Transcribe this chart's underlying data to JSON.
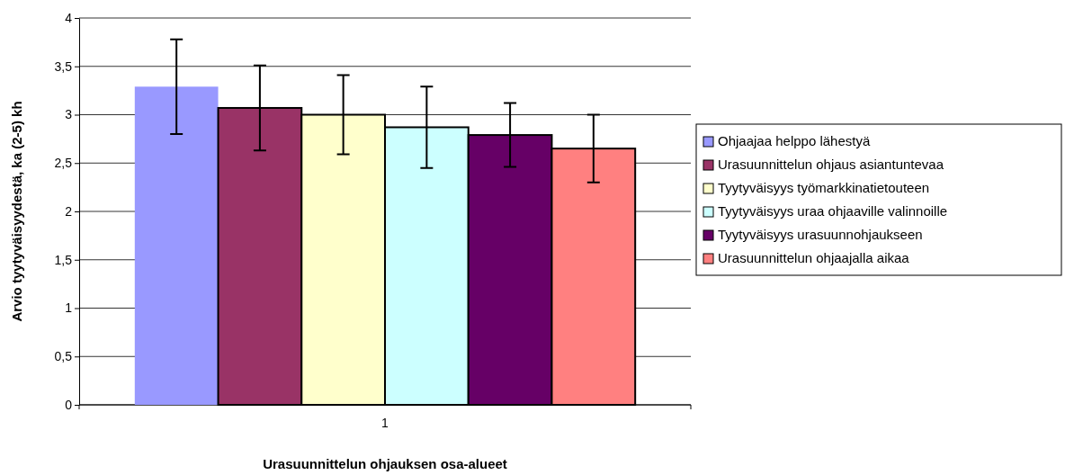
{
  "chart_data": {
    "type": "bar",
    "xlabel": "Urasuunnittelun ohjauksen osa-alueet",
    "ylabel": "Arvio tyytyväisyydestä, ka (2-5) kh",
    "categories": [
      "1"
    ],
    "series": [
      {
        "name": "Ohjaajaa  helppo lähestyä",
        "color": "#9999ff",
        "values": [
          3.29
        ],
        "errors": [
          0.49
        ]
      },
      {
        "name": "Urasuunnittelun ohjaus asiantuntevaa",
        "color": "#993366",
        "values": [
          3.07
        ],
        "errors": [
          0.44
        ]
      },
      {
        "name": "Tyytyväisyys työmarkkinatietouteen",
        "color": "#ffffcc",
        "values": [
          3.0
        ],
        "errors": [
          0.41
        ]
      },
      {
        "name": "Tyytyväisyys uraa ohjaaville valinnoille",
        "color": "#ccffff",
        "values": [
          2.87
        ],
        "errors": [
          0.42
        ]
      },
      {
        "name": "Tyytyväisyys urasuunnohjaukseen",
        "color": "#660066",
        "values": [
          2.79
        ],
        "errors": [
          0.33
        ]
      },
      {
        "name": "Urasuunnittelun ohjaajalla aikaa",
        "color": "#ff8080",
        "values": [
          2.65
        ],
        "errors": [
          0.35
        ]
      }
    ],
    "ylim": [
      0,
      4
    ],
    "yticks": [
      0,
      {
        "value": 0.5,
        "label": "0,5"
      },
      1,
      {
        "value": 1.5,
        "label": "1,5"
      },
      2,
      {
        "value": 2.5,
        "label": "2,5"
      },
      3,
      {
        "value": 3.5,
        "label": "3,5"
      },
      4
    ],
    "grid": "y",
    "legend": "right"
  }
}
